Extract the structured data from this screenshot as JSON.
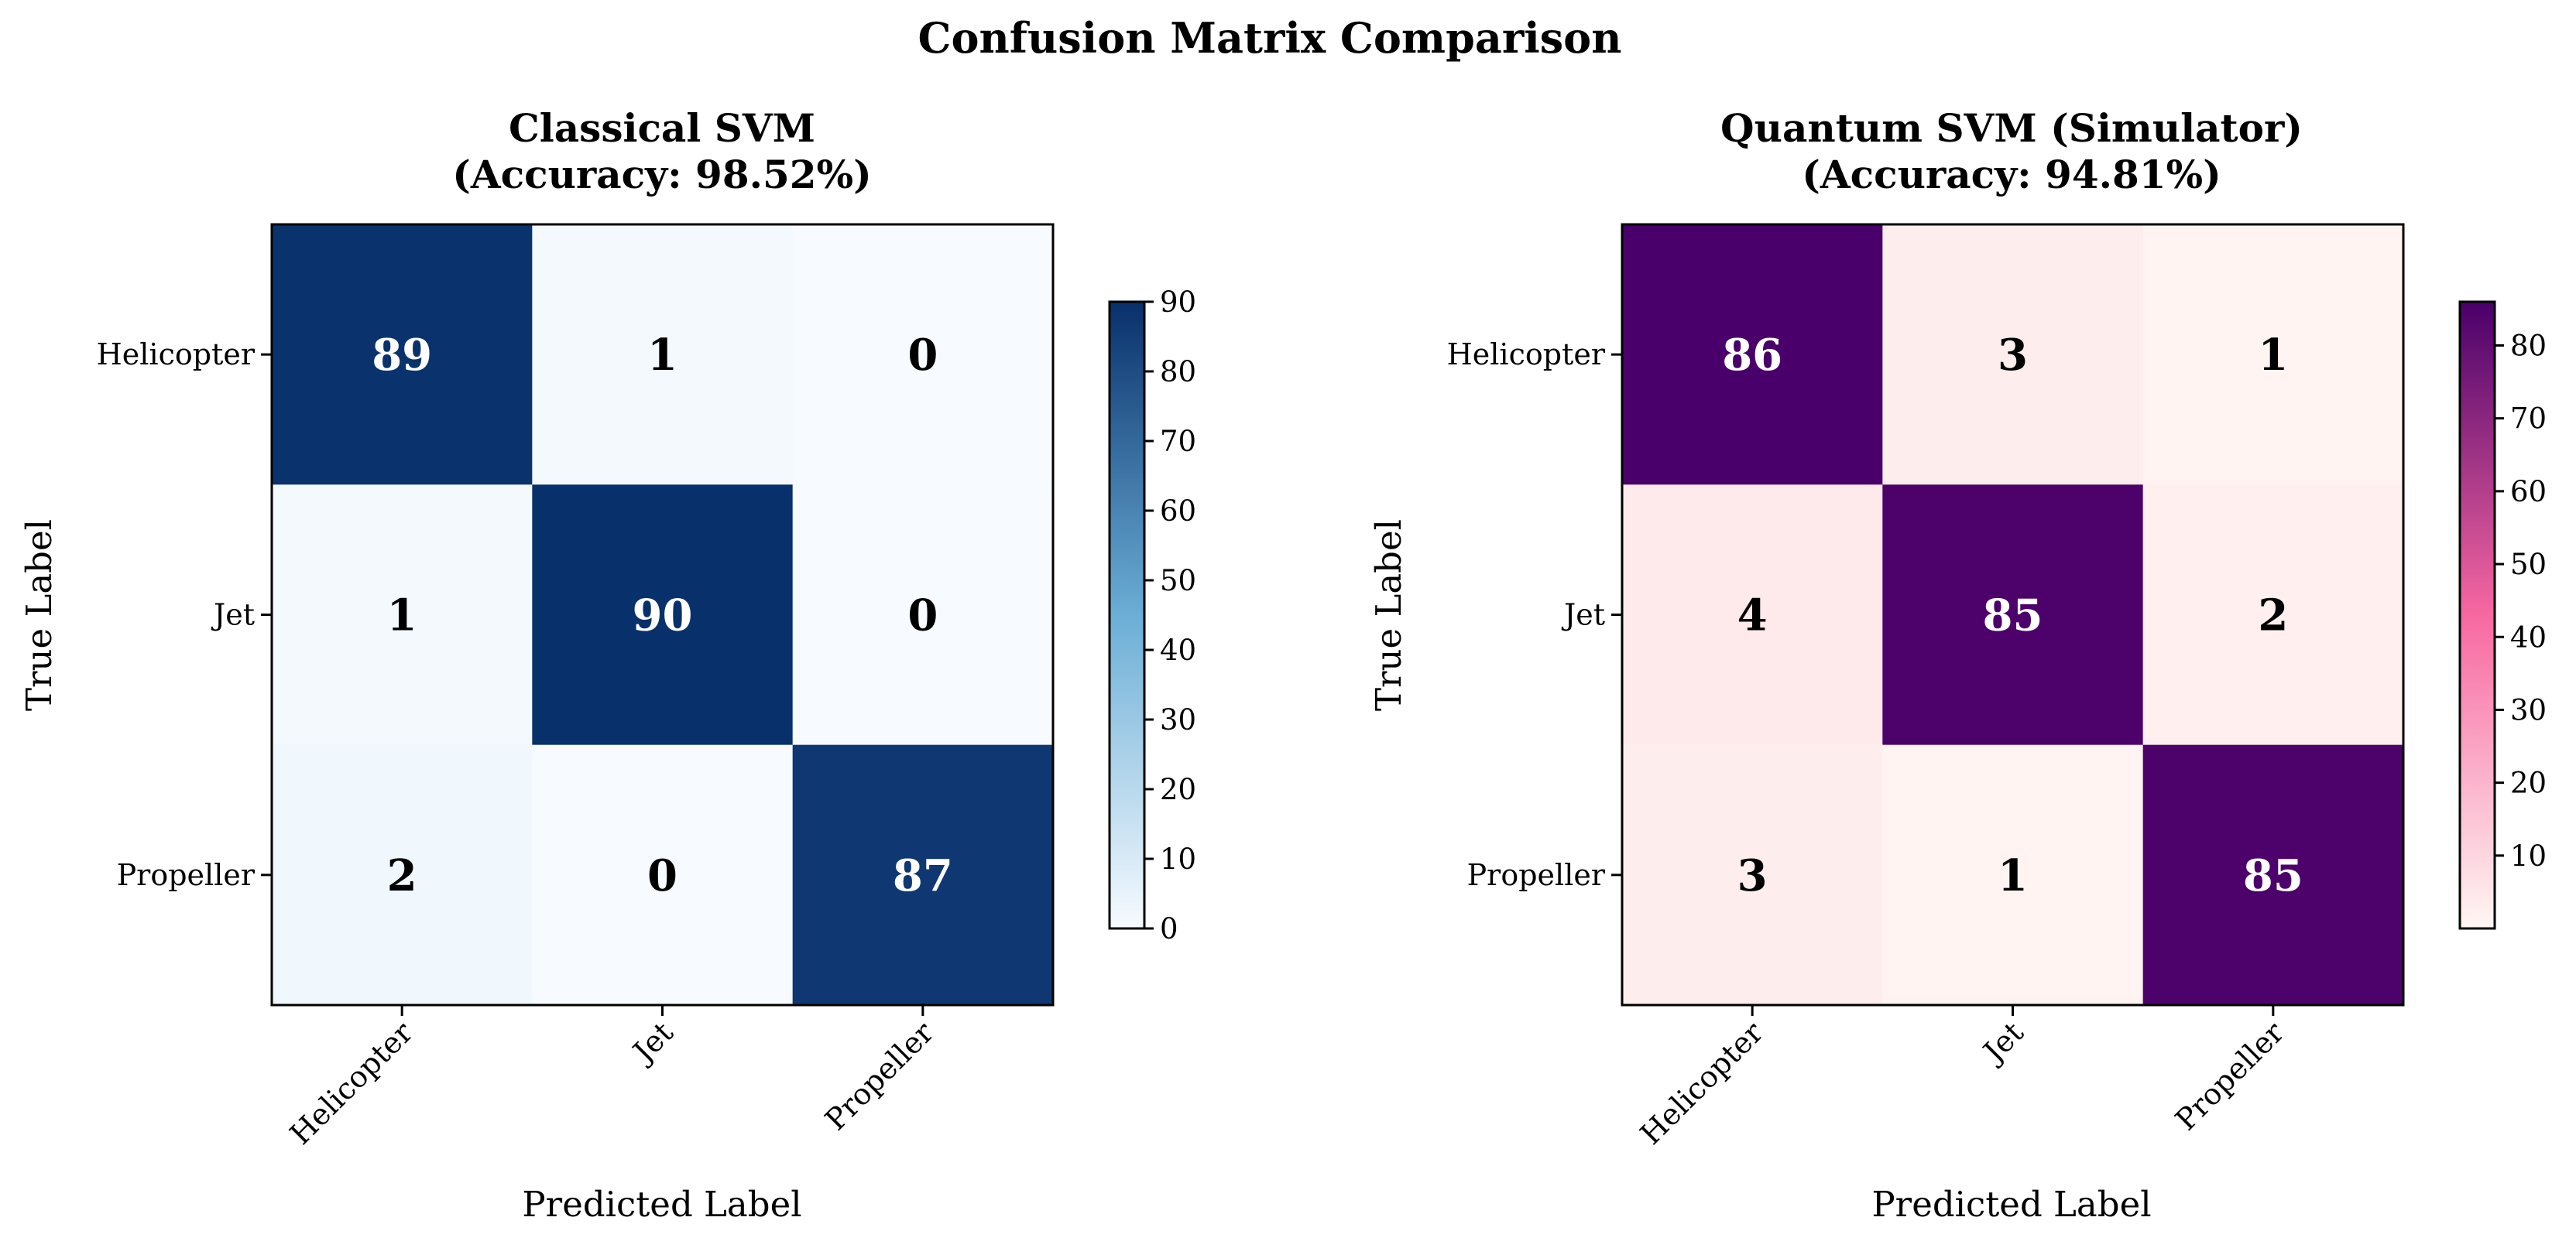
{
  "figure": {
    "title": "Confusion Matrix Comparison"
  },
  "chart_data": [
    {
      "type": "heatmap",
      "title_line1": "Classical SVM",
      "title_line2": "(Accuracy: 98.52%)",
      "xlabel": "Predicted Label",
      "ylabel": "True Label",
      "x_categories": [
        "Helicopter",
        "Jet",
        "Propeller"
      ],
      "y_categories": [
        "Helicopter",
        "Jet",
        "Propeller"
      ],
      "matrix": [
        [
          89,
          1,
          0
        ],
        [
          1,
          90,
          0
        ],
        [
          2,
          0,
          87
        ]
      ],
      "colormap": "Blues",
      "color_low": "#f7fbff",
      "color_mid": "#6baed6",
      "color_high": "#08306b",
      "vmin": 0,
      "vmax": 90,
      "colorbar_ticks": [
        0,
        10,
        20,
        30,
        40,
        50,
        60,
        70,
        80,
        90
      ]
    },
    {
      "type": "heatmap",
      "title_line1": "Quantum SVM (Simulator)",
      "title_line2": "(Accuracy: 94.81%)",
      "xlabel": "Predicted Label",
      "ylabel": "True Label",
      "x_categories": [
        "Helicopter",
        "Jet",
        "Propeller"
      ],
      "y_categories": [
        "Helicopter",
        "Jet",
        "Propeller"
      ],
      "matrix": [
        [
          86,
          3,
          1
        ],
        [
          4,
          85,
          2
        ],
        [
          3,
          1,
          85
        ]
      ],
      "colormap": "RdPu",
      "color_low": "#fff7f3",
      "color_mid": "#f768a1",
      "color_high": "#49006a",
      "vmin": 0,
      "vmax": 86,
      "colorbar_ticks": [
        10,
        20,
        30,
        40,
        50,
        60,
        70,
        80
      ]
    }
  ]
}
